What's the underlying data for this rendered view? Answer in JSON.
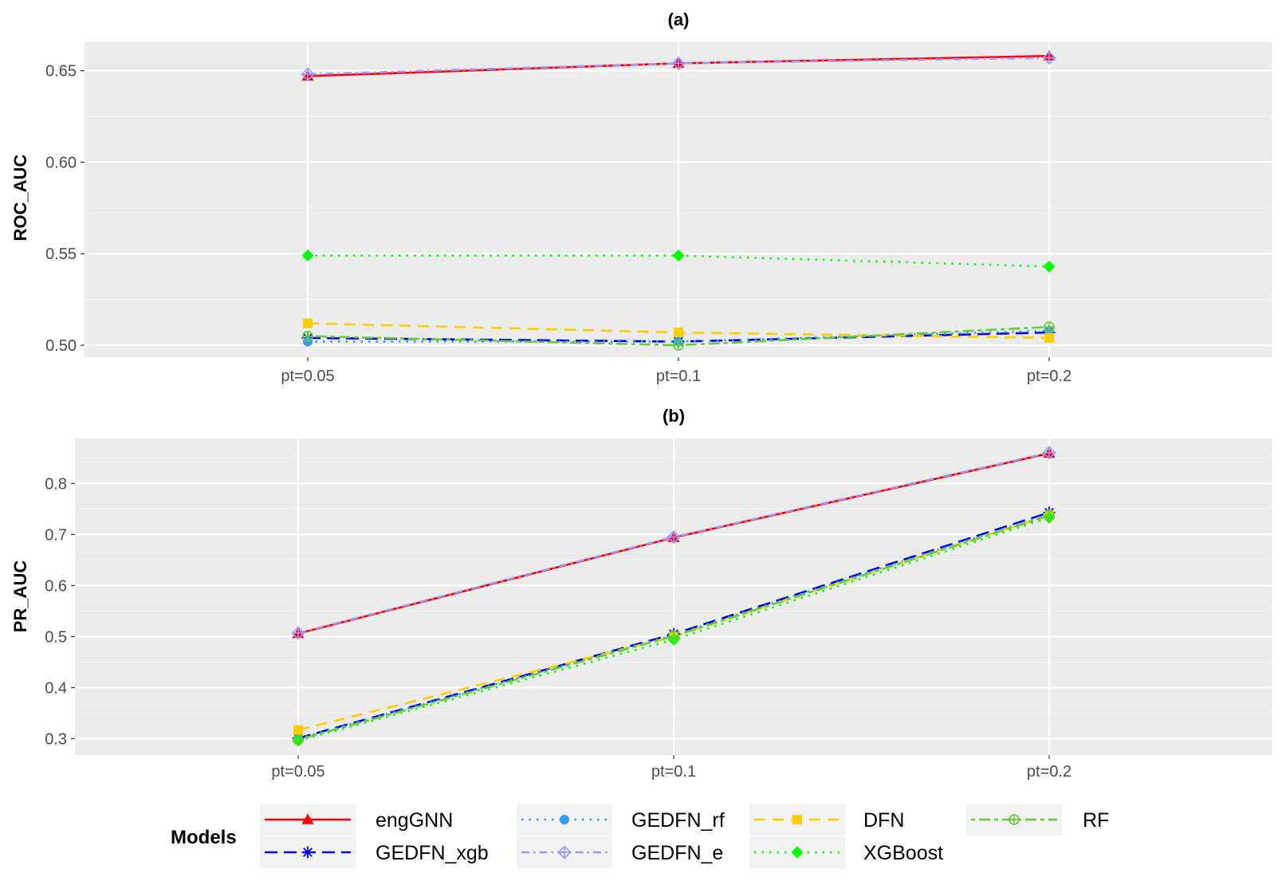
{
  "chart_data": [
    {
      "type": "line",
      "title": "(a)",
      "xlabel": "",
      "ylabel": "ROC_AUC",
      "categories": [
        "pt=0.05",
        "pt=0.1",
        "pt=0.2"
      ],
      "ylim": [
        0.4935,
        0.6655
      ],
      "yticks": [
        0.5,
        0.55,
        0.6,
        0.65
      ],
      "ytick_labels": [
        "0.50",
        "0.55",
        "0.60",
        "0.65"
      ],
      "series": [
        {
          "name": "engGNN",
          "values": [
            0.647,
            0.654,
            0.658
          ]
        },
        {
          "name": "GEDFN_xgb",
          "values": [
            0.504,
            0.502,
            0.507
          ]
        },
        {
          "name": "GEDFN_rf",
          "values": [
            0.502,
            0.502,
            0.508
          ]
        },
        {
          "name": "GEDFN_e",
          "values": [
            0.648,
            0.654,
            0.657
          ]
        },
        {
          "name": "DFN",
          "values": [
            0.512,
            0.507,
            0.504
          ]
        },
        {
          "name": "XGBoost",
          "values": [
            0.549,
            0.549,
            0.543
          ]
        },
        {
          "name": "RF",
          "values": [
            0.505,
            0.5,
            0.51
          ]
        }
      ]
    },
    {
      "type": "line",
      "title": "(b)",
      "xlabel": "",
      "ylabel": "PR_AUC",
      "categories": [
        "pt=0.05",
        "pt=0.1",
        "pt=0.2"
      ],
      "ylim": [
        0.268,
        0.888
      ],
      "yticks": [
        0.3,
        0.4,
        0.5,
        0.6,
        0.7,
        0.8
      ],
      "ytick_labels": [
        "0.3",
        "0.4",
        "0.5",
        "0.6",
        "0.7",
        "0.8"
      ],
      "series": [
        {
          "name": "engGNN",
          "values": [
            0.506,
            0.694,
            0.859
          ]
        },
        {
          "name": "GEDFN_xgb",
          "values": [
            0.301,
            0.505,
            0.743
          ]
        },
        {
          "name": "GEDFN_rf",
          "values": [
            0.3,
            0.503,
            0.74
          ]
        },
        {
          "name": "GEDFN_e",
          "values": [
            0.507,
            0.695,
            0.86
          ]
        },
        {
          "name": "DFN",
          "values": [
            0.317,
            0.5,
            0.738
          ]
        },
        {
          "name": "XGBoost",
          "values": [
            0.296,
            0.494,
            0.733
          ]
        },
        {
          "name": "RF",
          "values": [
            0.298,
            0.501,
            0.737
          ]
        }
      ]
    }
  ],
  "legend": {
    "title": "Models",
    "placement": "bottom",
    "entries": [
      {
        "name": "engGNN",
        "color": "#ff0000",
        "shape": "triangle",
        "line": "solid"
      },
      {
        "name": "GEDFN_xgb",
        "color": "#0000ee",
        "shape": "asterisk",
        "line": "longdash"
      },
      {
        "name": "GEDFN_rf",
        "color": "#3399ff",
        "shape": "circle",
        "line": "dotted"
      },
      {
        "name": "GEDFN_e",
        "color": "#9999ff",
        "shape": "diamond-plus",
        "line": "dashdot"
      },
      {
        "name": "DFN",
        "color": "#ffcc00",
        "shape": "square",
        "line": "dashed"
      },
      {
        "name": "XGBoost",
        "color": "#00ff00",
        "shape": "diamond",
        "line": "dotted"
      },
      {
        "name": "RF",
        "color": "#66cc33",
        "shape": "circle-plus",
        "line": "twodash"
      }
    ]
  }
}
